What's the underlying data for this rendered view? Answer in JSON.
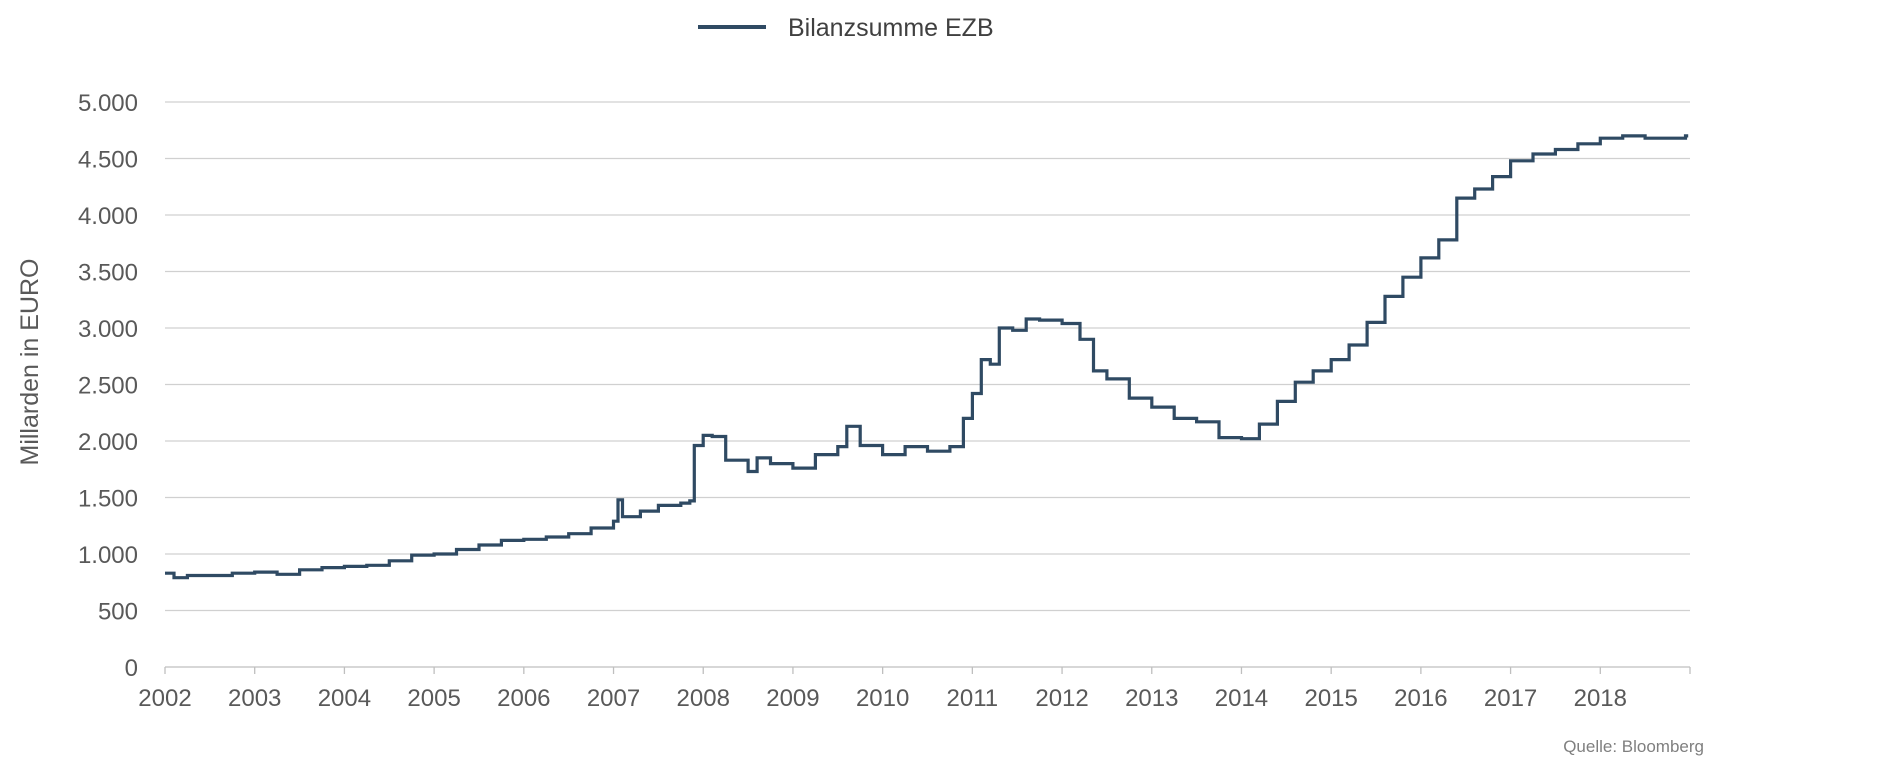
{
  "chart_data": {
    "type": "line",
    "title": "",
    "xlabel": "",
    "ylabel": "Millarden in EURO",
    "source": "Quelle: Bloomberg",
    "legend": {
      "position": "top-center",
      "entries": [
        "Bilanzsumme EZB"
      ]
    },
    "grid": {
      "horizontal": true,
      "vertical": false
    },
    "xlim": [
      2002,
      2019
    ],
    "ylim": [
      0,
      5000
    ],
    "x_ticks": [
      2002,
      2003,
      2004,
      2005,
      2006,
      2007,
      2008,
      2009,
      2010,
      2011,
      2012,
      2013,
      2014,
      2015,
      2016,
      2017,
      2018
    ],
    "x_tick_labels": [
      "2002",
      "2003",
      "2004",
      "2005",
      "2006",
      "2007",
      "2008",
      "2009",
      "2010",
      "2011",
      "2012",
      "2013",
      "2014",
      "2015",
      "2016",
      "2017",
      "2018"
    ],
    "y_ticks": [
      0,
      500,
      1000,
      1500,
      2000,
      2500,
      3000,
      3500,
      4000,
      4500,
      5000
    ],
    "y_tick_labels": [
      "0",
      "500",
      "1.000",
      "1.500",
      "2.000",
      "2.500",
      "3.000",
      "3.500",
      "4.000",
      "4.500",
      "5.000"
    ],
    "series": [
      {
        "name": "Bilanzsumme EZB",
        "color": "#2f4a63",
        "x": [
          2002.0,
          2002.1,
          2002.25,
          2002.5,
          2002.75,
          2003.0,
          2003.25,
          2003.5,
          2003.75,
          2004.0,
          2004.25,
          2004.5,
          2004.75,
          2005.0,
          2005.25,
          2005.5,
          2005.75,
          2006.0,
          2006.25,
          2006.5,
          2006.75,
          2007.0,
          2007.05,
          2007.1,
          2007.3,
          2007.5,
          2007.75,
          2007.85,
          2007.9,
          2008.0,
          2008.1,
          2008.25,
          2008.5,
          2008.6,
          2008.75,
          2009.0,
          2009.25,
          2009.5,
          2009.6,
          2009.75,
          2010.0,
          2010.25,
          2010.5,
          2010.75,
          2010.9,
          2011.0,
          2011.1,
          2011.2,
          2011.3,
          2011.45,
          2011.6,
          2011.75,
          2012.0,
          2012.2,
          2012.35,
          2012.5,
          2012.75,
          2013.0,
          2013.25,
          2013.5,
          2013.75,
          2014.0,
          2014.2,
          2014.4,
          2014.6,
          2014.8,
          2015.0,
          2015.2,
          2015.4,
          2015.6,
          2015.8,
          2016.0,
          2016.2,
          2016.4,
          2016.6,
          2016.8,
          2017.0,
          2017.25,
          2017.5,
          2017.75,
          2018.0,
          2018.25,
          2018.5,
          2018.75,
          2018.95
        ],
        "y": [
          830,
          790,
          810,
          810,
          830,
          840,
          820,
          860,
          880,
          890,
          900,
          940,
          990,
          1000,
          1040,
          1080,
          1120,
          1130,
          1150,
          1180,
          1230,
          1290,
          1480,
          1330,
          1380,
          1430,
          1450,
          1470,
          1960,
          2050,
          2040,
          1830,
          1730,
          1850,
          1800,
          1760,
          1880,
          1950,
          2130,
          1960,
          1880,
          1950,
          1910,
          1950,
          2200,
          2420,
          2720,
          2680,
          3000,
          2980,
          3080,
          3070,
          3040,
          2900,
          2620,
          2550,
          2380,
          2300,
          2200,
          2170,
          2030,
          2020,
          2150,
          2350,
          2520,
          2620,
          2720,
          2850,
          3050,
          3280,
          3450,
          3620,
          3780,
          4150,
          4230,
          4340,
          4480,
          4540,
          4580,
          4630,
          4680,
          4700,
          4680,
          4680,
          4700
        ]
      }
    ]
  }
}
